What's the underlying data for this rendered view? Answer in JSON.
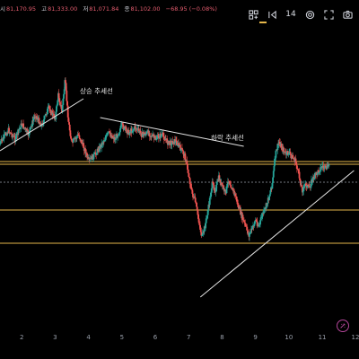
{
  "ohlc": {
    "open_label": "시",
    "open": "81,170.95",
    "high_label": "고",
    "high": "81,333.00",
    "low_label": "저",
    "low": "81,071.84",
    "close_label": "종",
    "close": "81,102.00",
    "change": "−68.95 (−0.08%)"
  },
  "toolbar": {
    "indicators_icon": "indicators-icon",
    "number_badge": "14",
    "replay_icon": "replay-icon",
    "settings_icon": "gear-icon",
    "fullscreen_icon": "fullscreen-icon",
    "screenshot_icon": "camera-icon"
  },
  "colors": {
    "up": "#26a69a",
    "down": "#ef5350",
    "level_line": "#e5b64a",
    "trend_line": "#e6e6e6",
    "current_price_line": "#9aa0ab",
    "background": "#000000"
  },
  "annotations": {
    "uptrend_label": "상승 추세선",
    "downtrend_label": "하락 추세선"
  },
  "chart_data": {
    "type": "candlestick",
    "title": "",
    "x_ticks": [
      "2",
      "3",
      "4",
      "5",
      "6",
      "7",
      "8",
      "9",
      "10",
      "11",
      "12"
    ],
    "x_range": [
      1.35,
      12.1
    ],
    "y_range": [
      50,
      380
    ],
    "horizontal_levels": [
      180,
      183,
      234,
      271
    ],
    "current_price_level": 203,
    "trendlines": [
      {
        "name": "uptrend-1",
        "from": [
          1.35,
          168
        ],
        "to": [
          3.85,
          110
        ]
      },
      {
        "name": "downtrend",
        "from": [
          4.35,
          131
        ],
        "to": [
          8.65,
          163
        ]
      },
      {
        "name": "uptrend-2",
        "from": [
          7.35,
          331
        ],
        "to": [
          11.95,
          190
        ]
      }
    ],
    "price_path": [
      [
        1.35,
        160
      ],
      [
        1.6,
        145
      ],
      [
        1.8,
        155
      ],
      [
        2.0,
        138
      ],
      [
        2.2,
        150
      ],
      [
        2.4,
        128
      ],
      [
        2.6,
        140
      ],
      [
        2.8,
        120
      ],
      [
        3.0,
        132
      ],
      [
        3.1,
        105
      ],
      [
        3.2,
        125
      ],
      [
        3.3,
        90
      ],
      [
        3.4,
        135
      ],
      [
        3.5,
        160
      ],
      [
        3.7,
        150
      ],
      [
        3.9,
        168
      ],
      [
        4.0,
        180
      ],
      [
        4.2,
        172
      ],
      [
        4.4,
        160
      ],
      [
        4.6,
        148
      ],
      [
        4.8,
        155
      ],
      [
        5.0,
        140
      ],
      [
        5.2,
        148
      ],
      [
        5.4,
        142
      ],
      [
        5.6,
        150
      ],
      [
        5.8,
        148
      ],
      [
        6.0,
        155
      ],
      [
        6.2,
        150
      ],
      [
        6.4,
        160
      ],
      [
        6.6,
        157
      ],
      [
        6.8,
        168
      ],
      [
        6.9,
        175
      ],
      [
        7.0,
        195
      ],
      [
        7.1,
        215
      ],
      [
        7.2,
        225
      ],
      [
        7.3,
        245
      ],
      [
        7.4,
        265
      ],
      [
        7.5,
        250
      ],
      [
        7.6,
        230
      ],
      [
        7.7,
        205
      ],
      [
        7.8,
        212
      ],
      [
        7.9,
        198
      ],
      [
        8.0,
        208
      ],
      [
        8.1,
        215
      ],
      [
        8.2,
        200
      ],
      [
        8.3,
        210
      ],
      [
        8.4,
        218
      ],
      [
        8.5,
        232
      ],
      [
        8.6,
        242
      ],
      [
        8.7,
        252
      ],
      [
        8.8,
        262
      ],
      [
        8.9,
        255
      ],
      [
        9.0,
        245
      ],
      [
        9.1,
        252
      ],
      [
        9.2,
        240
      ],
      [
        9.3,
        232
      ],
      [
        9.4,
        220
      ],
      [
        9.5,
        205
      ],
      [
        9.6,
        172
      ],
      [
        9.7,
        158
      ],
      [
        9.8,
        165
      ],
      [
        9.9,
        172
      ],
      [
        10.0,
        170
      ],
      [
        10.1,
        175
      ],
      [
        10.2,
        180
      ],
      [
        10.3,
        195
      ],
      [
        10.4,
        212
      ],
      [
        10.5,
        205
      ],
      [
        10.6,
        210
      ],
      [
        10.7,
        200
      ],
      [
        10.8,
        195
      ],
      [
        10.9,
        190
      ],
      [
        11.0,
        185
      ],
      [
        11.1,
        188
      ],
      [
        11.2,
        184
      ]
    ]
  }
}
